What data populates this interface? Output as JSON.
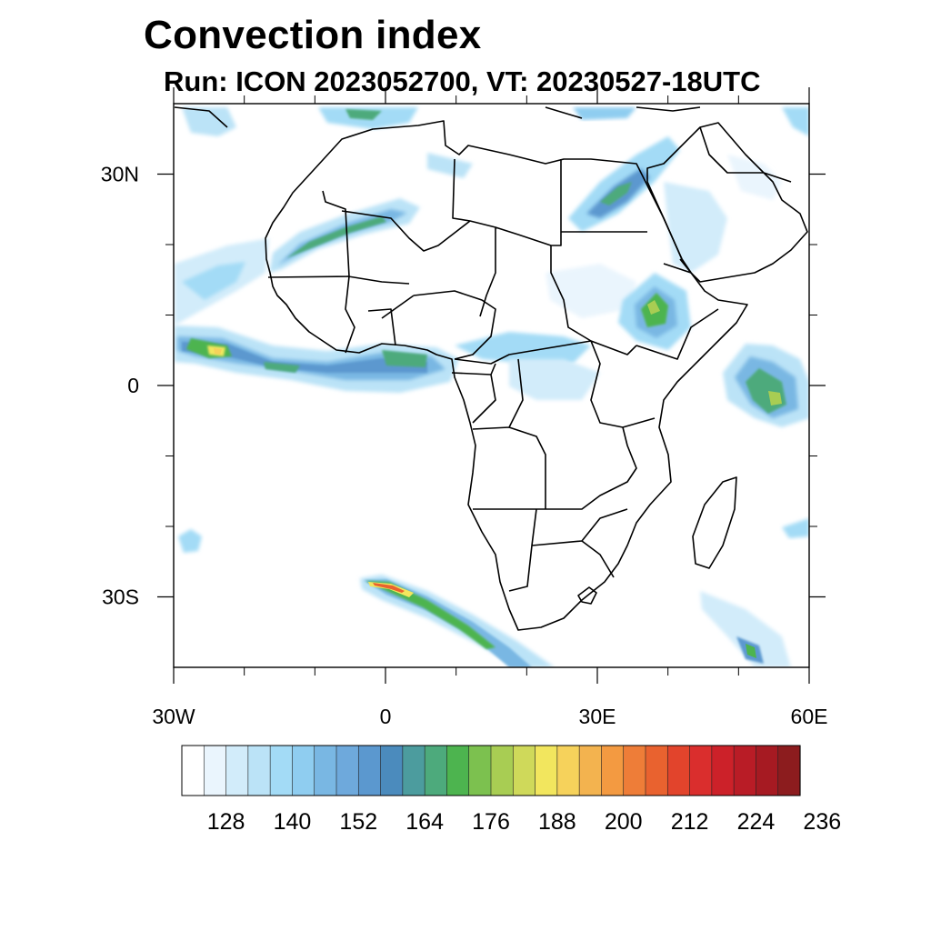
{
  "title": "Convection index",
  "subtitle": "Run: ICON 2023052700,  VT: 20230527-18UTC",
  "map": {
    "region": "Africa and Middle East",
    "lon_range": [
      -30,
      60
    ],
    "lat_range": [
      -40,
      40
    ],
    "x_tick_labels": [
      {
        "lon": -30,
        "label": "30W"
      },
      {
        "lon": 0,
        "label": "0"
      },
      {
        "lon": 30,
        "label": "30E"
      },
      {
        "lon": 60,
        "label": "60E"
      }
    ],
    "y_tick_labels": [
      {
        "lat": 30,
        "label": "30N"
      },
      {
        "lat": 0,
        "label": "0"
      },
      {
        "lat": -30,
        "label": "30S"
      }
    ],
    "x_minor_ticks_lon": [
      -20,
      -10,
      10,
      20,
      40,
      50
    ],
    "y_minor_ticks_lat": [
      20,
      10,
      -10,
      -20
    ],
    "convection_areas": [
      {
        "name": "sahara-northwest-band",
        "lon": [
          -16,
          4
        ],
        "lat": [
          18,
          26
        ],
        "max_level": 4
      },
      {
        "name": "north-atlantic-plume",
        "lon": [
          -30,
          -17
        ],
        "lat": [
          4,
          18
        ],
        "max_level": 3
      },
      {
        "name": "itcz-atlantic-gulf-of-guinea",
        "lon": [
          -30,
          10
        ],
        "lat": [
          1,
          8
        ],
        "max_level": 7
      },
      {
        "name": "sahel-central-africa",
        "lon": [
          4,
          36
        ],
        "lat": [
          0,
          12
        ],
        "max_level": 3
      },
      {
        "name": "ethiopian-highlands",
        "lon": [
          33,
          42
        ],
        "lat": [
          5,
          14
        ],
        "max_level": 5
      },
      {
        "name": "nile-delta-red-sea",
        "lon": [
          25,
          41
        ],
        "lat": [
          21,
          32
        ],
        "max_level": 4
      },
      {
        "name": "arabian-peninsula",
        "lon": [
          40,
          58
        ],
        "lat": [
          13,
          30
        ],
        "max_level": 2
      },
      {
        "name": "indian-ocean-west",
        "lon": [
          48,
          60
        ],
        "lat": [
          -5,
          6
        ],
        "max_level": 5
      },
      {
        "name": "south-atlantic-front",
        "lon": [
          -2,
          22
        ],
        "lat": [
          -40,
          -27
        ],
        "max_level": 9
      },
      {
        "name": "southwest-indian-ocean",
        "lon": [
          42,
          60
        ],
        "lat": [
          -40,
          -30
        ],
        "max_level": 4
      },
      {
        "name": "south-atlantic-small-cell",
        "lon": [
          -30,
          -27
        ],
        "lat": [
          -23,
          -19
        ],
        "max_level": 2
      },
      {
        "name": "mediterranean-strip",
        "lon": [
          -30,
          60
        ],
        "lat": [
          36,
          40
        ],
        "max_level": 3
      }
    ]
  },
  "colorbar": {
    "colors": [
      "#ffffff",
      "#eaf5fd",
      "#d2ecfa",
      "#bbe3f7",
      "#a3dbf6",
      "#8fcdf0",
      "#79b7e3",
      "#6ea9dc",
      "#5b98cf",
      "#4b8bbd",
      "#4c9c9e",
      "#4daa7c",
      "#4db44f",
      "#7cc14f",
      "#a8cd53",
      "#cfd95a",
      "#f2e65e",
      "#f6d25b",
      "#f3b34f",
      "#f39a41",
      "#ee7d38",
      "#e9622f",
      "#e2442c",
      "#da2e2d",
      "#cc2129",
      "#b91c26",
      "#a61a22",
      "#8c1c1e"
    ],
    "labels": [
      "128",
      "140",
      "152",
      "164",
      "176",
      "188",
      "200",
      "212",
      "224",
      "236"
    ],
    "label_start_boundary": 2,
    "label_step": 3
  }
}
